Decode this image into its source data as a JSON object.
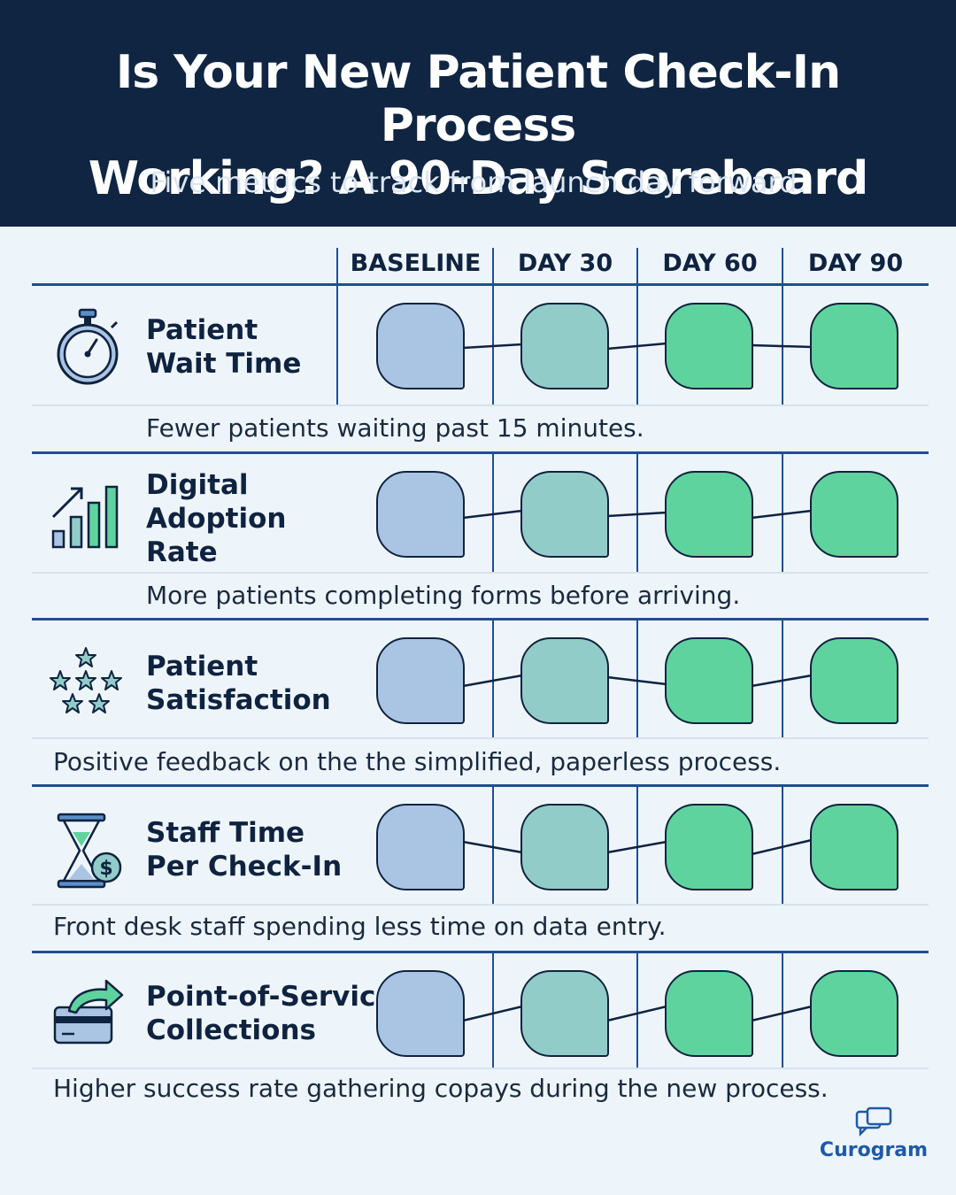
{
  "header": {
    "title_line1": "Is Your New Patient Check-In Process",
    "title_line2": "Working? A 90-Day Scoreboard",
    "subtitle": "Five metrics to track from launch day forward."
  },
  "columns": [
    "BASELINE",
    "DAY 30",
    "DAY 60",
    "DAY 90"
  ],
  "metrics": [
    {
      "name_lines": [
        "Patient",
        "Wait Time"
      ],
      "description": "Fewer patients waiting past 15 minutes.",
      "icon": "stopwatch-icon"
    },
    {
      "name_lines": [
        "Digital",
        "Adoption",
        "Rate"
      ],
      "description": "More patients completing forms before arriving.",
      "icon": "bar-chart-growth-icon"
    },
    {
      "name_lines": [
        "Patient",
        "Satisfaction"
      ],
      "description": "Positive feedback on the the simplified, paperless process.",
      "icon": "stars-icon"
    },
    {
      "name_lines": [
        "Staff Time",
        "Per Check-In"
      ],
      "description": "Front desk staff spending less time on data entry.",
      "icon": "hourglass-dollar-icon"
    },
    {
      "name_lines": [
        "Point-of-Service",
        "Collections"
      ],
      "description": "Higher success rate gathering copays during the new process.",
      "icon": "card-arrow-icon"
    }
  ],
  "colors": {
    "header_bg": "#0f2542",
    "baseline": "#aac4e4",
    "day30": "#92ccc8",
    "day60": "#5fd39e",
    "day90": "#5fd39e",
    "rule": "#1f4e94"
  },
  "brand": {
    "name": "Curogram",
    "icon": "chat-bubbles-icon"
  }
}
